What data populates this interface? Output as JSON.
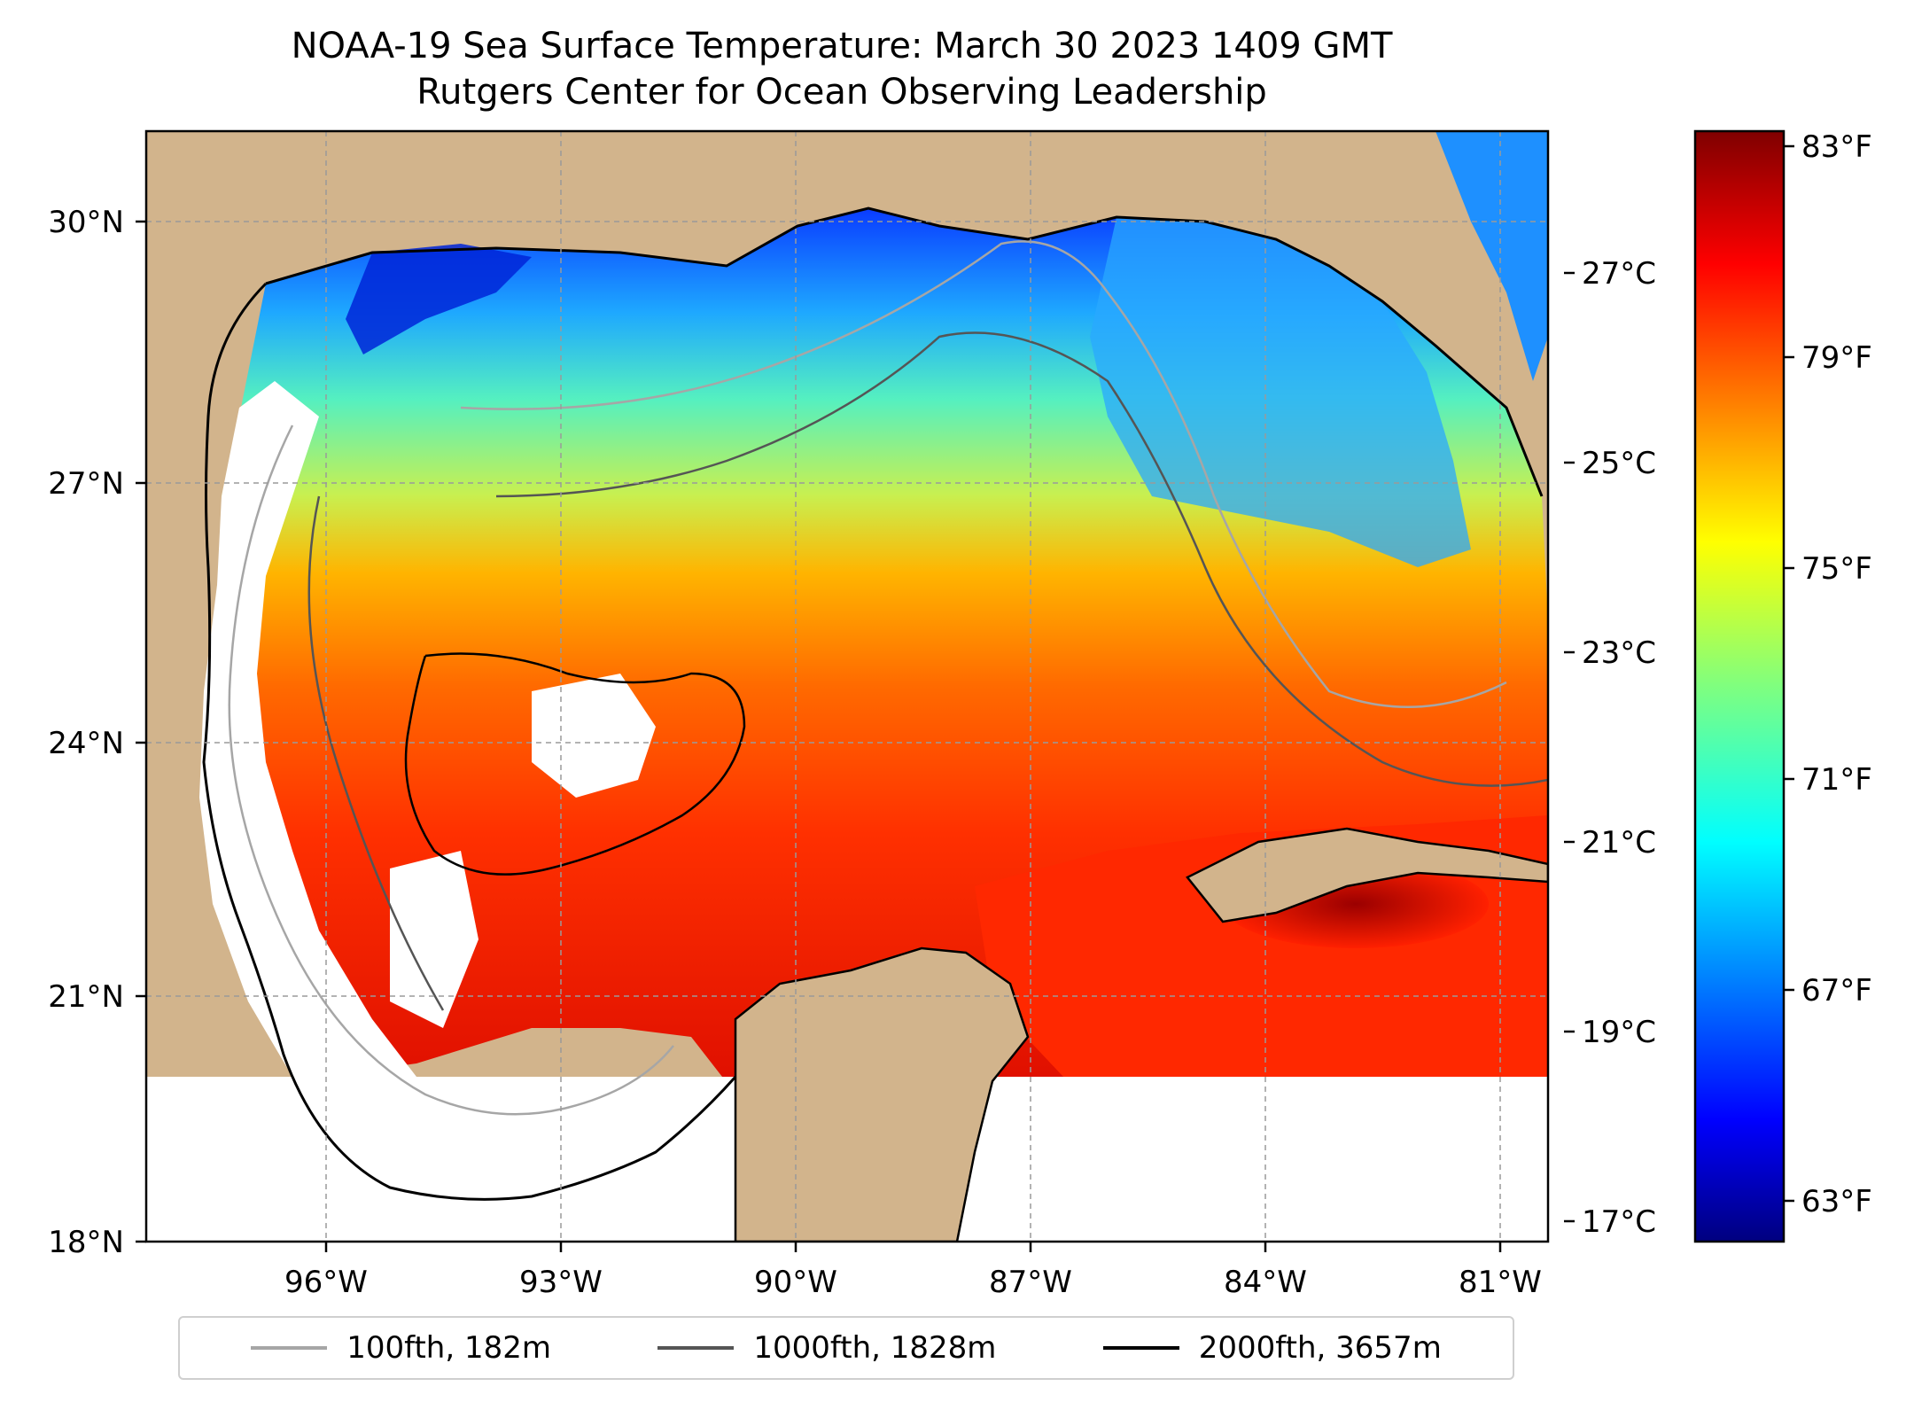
{
  "title": {
    "line1": "NOAA-19 Sea Surface Temperature: March 30 2023 1409 GMT",
    "line2": "Rutgers Center for Ocean Observing Leadership"
  },
  "map": {
    "lat_ticks": [
      "30°N",
      "27°N",
      "24°N",
      "21°N",
      "18°N"
    ],
    "lon_ticks": [
      "96°W",
      "93°W",
      "90°W",
      "87°W",
      "84°W",
      "81°W"
    ],
    "colors": {
      "land": "#d2b48c",
      "gulf_cool": "#1e90ff",
      "gulf_warm": "#ff4500",
      "cloud": "#ffffff"
    }
  },
  "colorbar": {
    "celsius_ticks": [
      "27°C",
      "25°C",
      "23°C",
      "21°C",
      "19°C",
      "17°C"
    ],
    "fahrenheit_ticks": [
      "83°F",
      "79°F",
      "75°F",
      "71°F",
      "67°F",
      "63°F"
    ],
    "colormap": "jet"
  },
  "legend": {
    "items": [
      {
        "label": "100fth, 182m",
        "color": "#a6a6a6"
      },
      {
        "label": "1000fth, 1828m",
        "color": "#555555"
      },
      {
        "label": "2000fth, 3657m",
        "color": "#000000"
      }
    ]
  }
}
